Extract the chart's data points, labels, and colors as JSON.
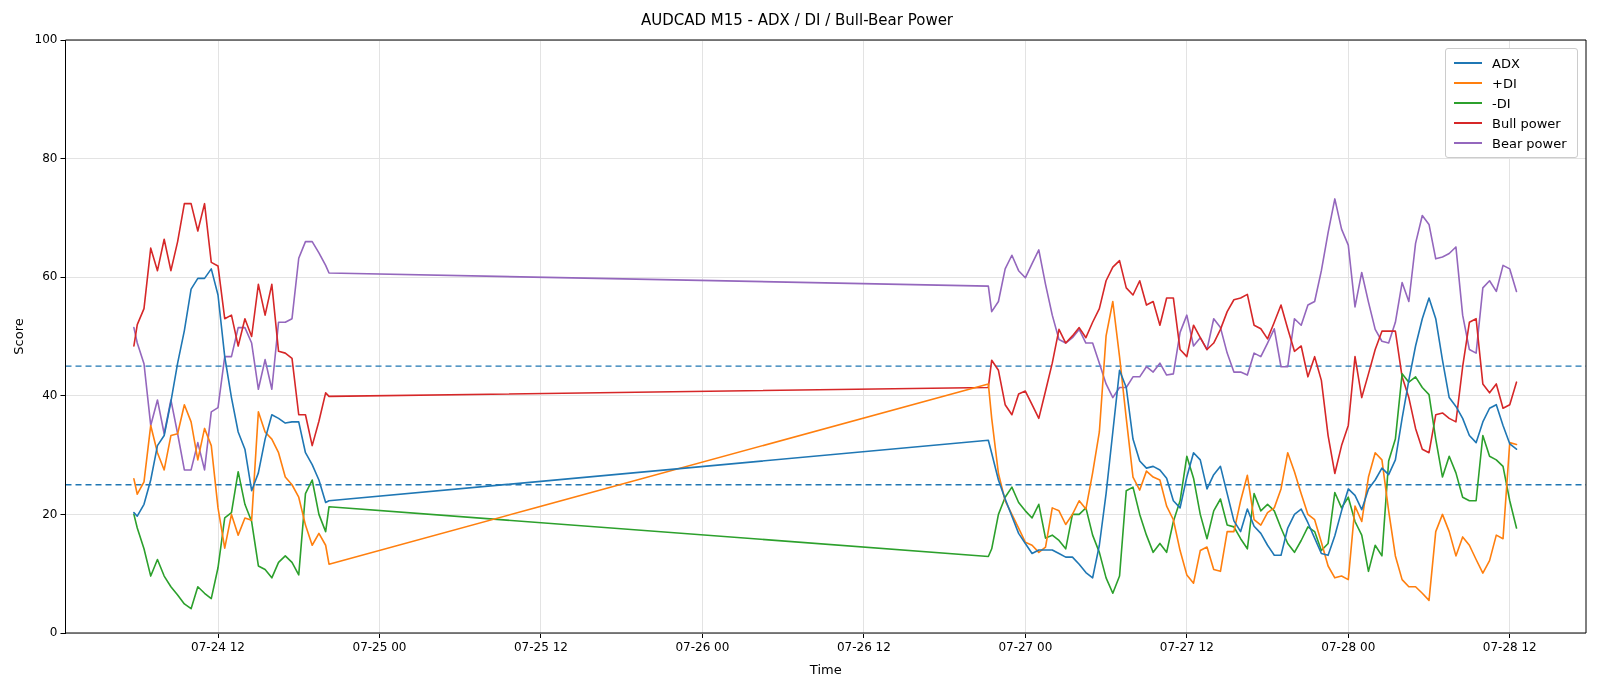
{
  "chart_data": {
    "type": "line",
    "title": "AUDCAD M15 - ADX / DI / Bull-Bear Power",
    "xlabel": "Time",
    "ylabel": "Score",
    "x": [
      "--07-24T05:45",
      "--07-24T06:00",
      "--07-24T06:30",
      "--07-24T07:00",
      "--07-24T07:30",
      "--07-24T08:00",
      "--07-24T08:30",
      "--07-24T09:00",
      "--07-24T09:30",
      "--07-24T10:00",
      "--07-24T10:30",
      "--07-24T11:00",
      "--07-24T11:30",
      "--07-24T12:00",
      "--07-24T12:30",
      "--07-24T13:00",
      "--07-24T13:30",
      "--07-24T14:00",
      "--07-24T14:30",
      "--07-24T15:00",
      "--07-24T15:30",
      "--07-24T16:00",
      "--07-24T16:30",
      "--07-24T17:00",
      "--07-24T17:30",
      "--07-24T18:00",
      "--07-24T18:30",
      "--07-24T19:00",
      "--07-24T19:30",
      "--07-24T20:00",
      "--07-24T20:15",
      "--07-26T21:15",
      "--07-26T21:30",
      "--07-26T22:00",
      "--07-26T22:30",
      "--07-26T23:00",
      "--07-26T23:30",
      "--07-27T00:00",
      "--07-27T00:30",
      "--07-27T01:00",
      "--07-27T01:30",
      "--07-27T02:00",
      "--07-27T02:30",
      "--07-27T03:00",
      "--07-27T03:30",
      "--07-27T04:00",
      "--07-27T04:30",
      "--07-27T05:00",
      "--07-27T05:30",
      "--07-27T06:00",
      "--07-27T06:30",
      "--07-27T07:00",
      "--07-27T07:30",
      "--07-27T08:00",
      "--07-27T08:30",
      "--07-27T09:00",
      "--07-27T09:30",
      "--07-27T10:00",
      "--07-27T10:30",
      "--07-27T11:00",
      "--07-27T11:30",
      "--07-27T12:00",
      "--07-27T12:30",
      "--07-27T13:00",
      "--07-27T13:30",
      "--07-27T14:00",
      "--07-27T14:30",
      "--07-27T15:00",
      "--07-27T15:30",
      "--07-27T16:00",
      "--07-27T16:30",
      "--07-27T17:00",
      "--07-27T17:30",
      "--07-27T18:00",
      "--07-27T18:30",
      "--07-27T19:00",
      "--07-27T19:30",
      "--07-27T20:00",
      "--07-27T20:30",
      "--07-27T21:00",
      "--07-27T21:30",
      "--07-27T22:00",
      "--07-27T22:30",
      "--07-27T23:00",
      "--07-27T23:30",
      "--07-28T00:00",
      "--07-28T00:30",
      "--07-28T01:00",
      "--07-28T01:30",
      "--07-28T02:00",
      "--07-28T02:30",
      "--07-28T03:00",
      "--07-28T03:30",
      "--07-28T04:00",
      "--07-28T04:30",
      "--07-28T05:00",
      "--07-28T05:30",
      "--07-28T06:00",
      "--07-28T06:30",
      "--07-28T07:00",
      "--07-28T07:30",
      "--07-28T08:00",
      "--07-28T08:30",
      "--07-28T09:00",
      "--07-28T09:30",
      "--07-28T10:00",
      "--07-28T10:30",
      "--07-28T11:00",
      "--07-28T11:30",
      "--07-28T12:00",
      "--07-28T12:30"
    ],
    "series": [
      {
        "name": "ADX",
        "color": "#1f77b4",
        "values": [
          20.3,
          19.7,
          21.7,
          25.8,
          31.6,
          33.3,
          39,
          45.5,
          51,
          58,
          59.8,
          59.8,
          61.4,
          57,
          46.6,
          39.7,
          33.9,
          31,
          24,
          27,
          32.7,
          36.8,
          36.2,
          35.4,
          35.6,
          35.6,
          30.4,
          28.4,
          25.8,
          22,
          22.3,
          32.5,
          30.3,
          25.8,
          22.6,
          19.7,
          16.8,
          15.1,
          13.4,
          14,
          14,
          14,
          13.4,
          12.8,
          12.8,
          11.6,
          10.2,
          9.3,
          14.8,
          23.5,
          33.9,
          44.3,
          41.4,
          32.7,
          29,
          27.8,
          28.1,
          27.5,
          26.1,
          22.3,
          21.1,
          26.3,
          30.4,
          29.2,
          24.3,
          26.7,
          28.1,
          23.5,
          18.9,
          17.1,
          20.9,
          18,
          16.8,
          14.8,
          13.1,
          13.1,
          17.7,
          20,
          20.9,
          18.6,
          16,
          13.4,
          13.1,
          16.4,
          20.6,
          24.3,
          23.2,
          20.8,
          24.3,
          25.8,
          27.8,
          26.7,
          29.2,
          36.2,
          42.6,
          48.4,
          53,
          56.5,
          53,
          46,
          39.7,
          38.2,
          36.2,
          33.3,
          32.1,
          35.6,
          37.9,
          38.5,
          35,
          31.9,
          31
        ]
      },
      {
        "name": "+DI",
        "color": "#ff7f0e",
        "values": [
          26,
          23.4,
          25.5,
          35,
          30.4,
          27.5,
          33.3,
          33.6,
          38.5,
          35.6,
          29.2,
          34.5,
          31.6,
          21.1,
          14.3,
          20,
          16.5,
          19.4,
          19,
          37.3,
          33.9,
          32.7,
          30.4,
          26.3,
          25,
          22.9,
          18.2,
          14.8,
          16.8,
          14.8,
          11.6,
          42,
          36.2,
          26.9,
          22.3,
          20,
          17.7,
          15.3,
          14.8,
          13.6,
          14.5,
          21.1,
          20.6,
          18.3,
          20,
          22.3,
          20.9,
          27,
          33.9,
          50.1,
          55.9,
          46.6,
          36.2,
          26.3,
          24.1,
          27.3,
          26.3,
          25.8,
          21.4,
          19.1,
          13.9,
          9.8,
          8.4,
          13.9,
          14.5,
          10.7,
          10.4,
          17.1,
          17.1,
          22.3,
          26.6,
          19.1,
          18.2,
          20.3,
          21.1,
          24.3,
          30.4,
          27.2,
          23.5,
          20,
          19.1,
          15.3,
          11.3,
          9.3,
          9.6,
          9,
          21.4,
          18.8,
          26.3,
          30.4,
          29.2,
          20.6,
          13,
          9,
          7.8,
          7.8,
          6.7,
          5.5,
          17.1,
          20,
          17.1,
          13,
          16.2,
          14.8,
          12.4,
          10.1,
          12.2,
          16.5,
          15.9,
          32.1,
          31.8
        ]
      },
      {
        "name": "-DI",
        "color": "#2ca02c",
        "values": [
          20,
          17.7,
          14.2,
          9.6,
          12.4,
          9.6,
          7.8,
          6.4,
          4.9,
          4.1,
          7.8,
          6.7,
          5.8,
          11,
          19.4,
          20.3,
          27.2,
          21.7,
          18.8,
          11.3,
          10.7,
          9.3,
          11.9,
          13,
          11.9,
          9.8,
          23.5,
          25.8,
          20,
          17.1,
          21.3,
          12.9,
          14.2,
          20,
          22.9,
          24.6,
          22,
          20.6,
          19.4,
          21.7,
          16,
          16.5,
          15.6,
          14.2,
          20,
          20,
          21.1,
          16.5,
          13.6,
          9.3,
          6.7,
          9.6,
          24,
          24.6,
          20,
          16.5,
          13.6,
          15.1,
          13.6,
          18.8,
          22.3,
          29.8,
          26.1,
          20,
          15.9,
          20.6,
          22.6,
          18.2,
          17.9,
          15.9,
          14.2,
          23.5,
          20.6,
          21.7,
          20.6,
          17.7,
          15.1,
          13.6,
          15.6,
          17.9,
          17.1,
          13.9,
          15.1,
          23.7,
          21.1,
          22.9,
          18.8,
          16.5,
          10.4,
          14.8,
          13,
          29,
          32.7,
          43.7,
          42.3,
          43.2,
          41.4,
          40.2,
          32.7,
          26.3,
          29.8,
          27,
          22.9,
          22.3,
          22.3,
          33.3,
          29.8,
          29.2,
          28.1,
          22.3,
          17.7
        ]
      },
      {
        "name": "Bull power",
        "color": "#d62728",
        "values": [
          48.4,
          52,
          54.7,
          64.9,
          61.1,
          66.4,
          61.1,
          66,
          72.4,
          72.4,
          67.8,
          72.4,
          62.5,
          61.9,
          53,
          53.6,
          48.4,
          53,
          50,
          58.8,
          53.6,
          58.8,
          47.5,
          47.2,
          46.3,
          36.8,
          36.8,
          31.6,
          35.7,
          40.5,
          39.9,
          41.4,
          46,
          44.3,
          38.5,
          36.8,
          40.3,
          40.8,
          38.5,
          36.2,
          40.8,
          45.5,
          51.2,
          48.9,
          50.1,
          51.5,
          49.8,
          52.4,
          54.7,
          59.4,
          61.7,
          62.8,
          58.2,
          57,
          59.4,
          55.3,
          55.9,
          51.9,
          56.5,
          56.5,
          47.8,
          46.6,
          51.9,
          49.8,
          47.8,
          48.9,
          51.2,
          54.2,
          56.2,
          56.5,
          57.1,
          51.9,
          51.3,
          49.6,
          52.4,
          55.3,
          51.3,
          47.5,
          48.4,
          43.2,
          46.6,
          42.6,
          33.3,
          26.9,
          31.6,
          35,
          46.6,
          39.7,
          43.7,
          47.8,
          50.9,
          50.9,
          50.9,
          43.2,
          39.7,
          34.5,
          31,
          30.4,
          36.8,
          37.1,
          36.2,
          35.6,
          44.9,
          52.4,
          53,
          42,
          40.5,
          42,
          37.9,
          38.5,
          42.3
        ]
      },
      {
        "name": "Bear power",
        "color": "#9467bd",
        "values": [
          51.5,
          48.9,
          45.4,
          35,
          39.3,
          33.6,
          39.3,
          33.6,
          27.5,
          27.5,
          32.1,
          27.5,
          37.3,
          38,
          46.6,
          46.6,
          51.5,
          51.5,
          48.9,
          41.1,
          46.1,
          41.1,
          52.4,
          52.4,
          53,
          63.2,
          66,
          66,
          64.1,
          62,
          60.7,
          58.5,
          54.2,
          55.9,
          61.4,
          63.7,
          61.1,
          59.9,
          62.3,
          64.6,
          58.8,
          53.6,
          49.5,
          48.9,
          49.8,
          51.2,
          48.9,
          48.9,
          45.5,
          42,
          39.7,
          41.4,
          41.4,
          43.2,
          43.2,
          44.9,
          44,
          45.5,
          43.5,
          43.7,
          50.7,
          53.6,
          48.4,
          49.8,
          47.8,
          53,
          51.5,
          47.2,
          44,
          44,
          43.5,
          47.2,
          46.6,
          48.9,
          51.3,
          44.9,
          44.9,
          53,
          51.9,
          55.3,
          55.9,
          61.1,
          67.5,
          73.2,
          68.1,
          65.4,
          55,
          60.8,
          55.8,
          51.2,
          49.2,
          48.9,
          52.4,
          59.1,
          55.9,
          65.7,
          70.4,
          68.9,
          63.1,
          63.4,
          64,
          65.1,
          53.6,
          47.8,
          47.2,
          58.2,
          59.4,
          57.6,
          62,
          61.4,
          57.6
        ]
      }
    ],
    "xlim": [
      "--07-24T00:40",
      "--07-28T17:40"
    ],
    "xticks": [
      {
        "value": "--07-24T12:00",
        "label": "07-24 12"
      },
      {
        "value": "--07-25T00:00",
        "label": "07-25 00"
      },
      {
        "value": "--07-25T12:00",
        "label": "07-25 12"
      },
      {
        "value": "--07-26T00:00",
        "label": "07-26 00"
      },
      {
        "value": "--07-26T12:00",
        "label": "07-26 12"
      },
      {
        "value": "--07-27T00:00",
        "label": "07-27 00"
      },
      {
        "value": "--07-27T12:00",
        "label": "07-27 12"
      },
      {
        "value": "--07-28T00:00",
        "label": "07-28 00"
      },
      {
        "value": "--07-28T12:00",
        "label": "07-28 12"
      }
    ],
    "ylim": [
      0,
      100
    ],
    "yticks": [
      0,
      20,
      40,
      60,
      80,
      100
    ],
    "ref_lines": [
      {
        "axis": "y",
        "value": 45,
        "color": "#1f77b4",
        "line_style": "dashed"
      },
      {
        "axis": "y",
        "value": 25,
        "color": "#1f77b4",
        "line_style": "dashed"
      }
    ],
    "grid": true,
    "legend": "top right",
    "marker": "none",
    "line_style": "solid"
  }
}
